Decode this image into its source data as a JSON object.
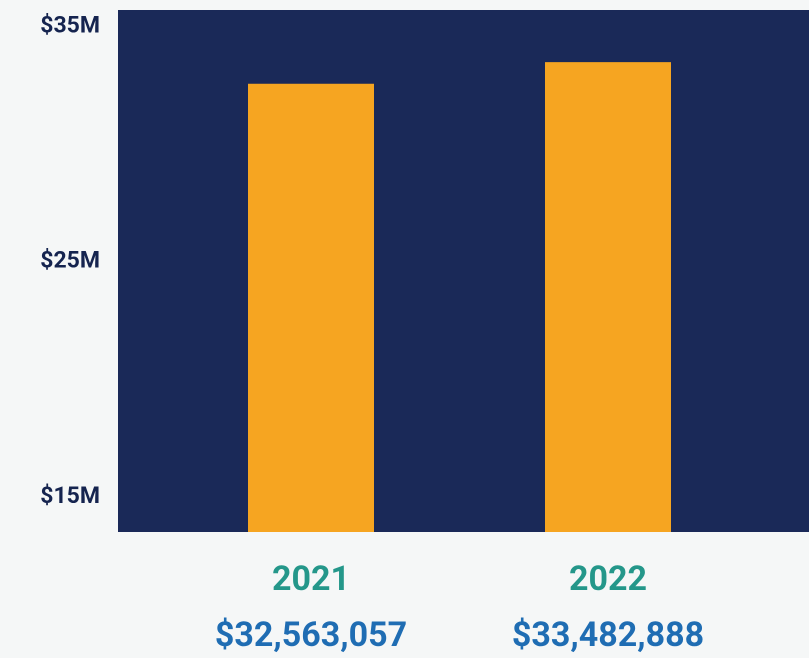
{
  "chart_data": {
    "type": "bar",
    "categories": [
      "2021",
      "2022"
    ],
    "values": [
      32563057,
      33482888
    ],
    "value_labels": [
      "$32,563,057",
      "$33,482,888"
    ],
    "color": "#f6a521",
    "ylim": [
      13500000,
      35700000
    ],
    "yticks": [
      {
        "value": 15000000,
        "label": "$15M"
      },
      {
        "value": 25000000,
        "label": "$25M"
      },
      {
        "value": 35000000,
        "label": "$35M"
      }
    ],
    "grid": false
  }
}
